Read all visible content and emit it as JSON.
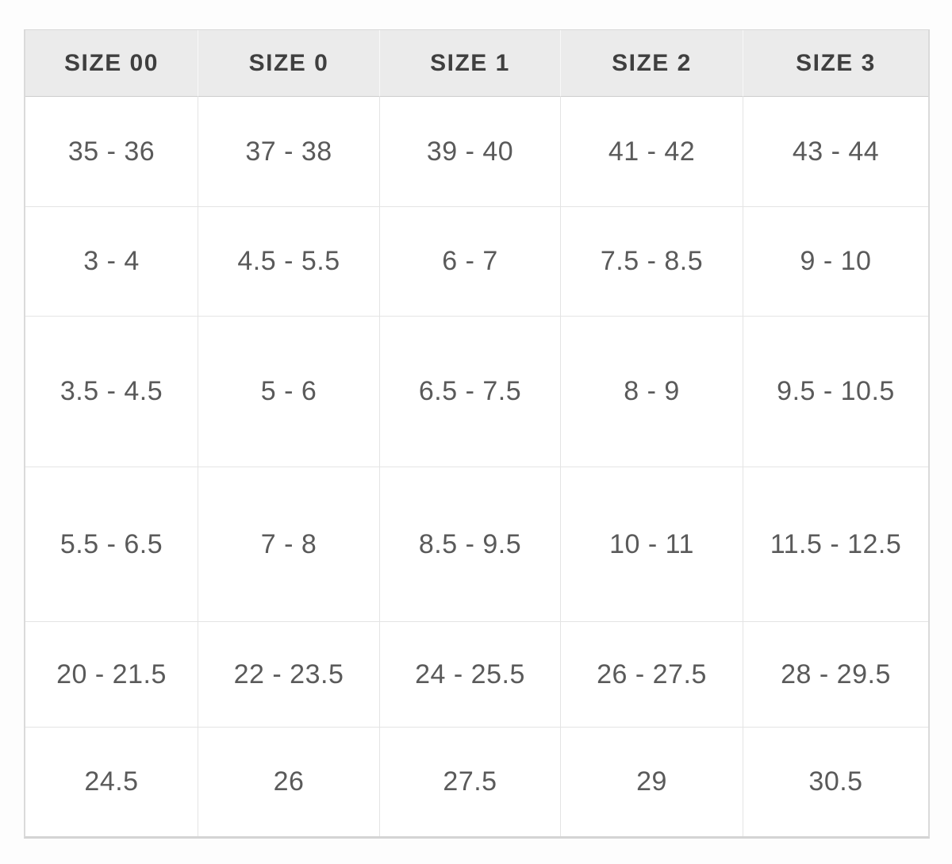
{
  "table": {
    "headers": [
      "SIZE 00",
      "SIZE 0",
      "SIZE 1",
      "SIZE 2",
      "SIZE 3"
    ],
    "rows": [
      [
        "35 - 36",
        "37 - 38",
        "39 - 40",
        "41 - 42",
        "43 - 44"
      ],
      [
        "3 - 4",
        "4.5 - 5.5",
        "6 - 7",
        "7.5 - 8.5",
        "9 - 10"
      ],
      [
        "3.5 - 4.5",
        "5 - 6",
        "6.5 - 7.5",
        "8 - 9",
        "9.5 - 10.5"
      ],
      [
        "5.5 - 6.5",
        "7 - 8",
        "8.5 - 9.5",
        "10 - 11",
        "11.5 - 12.5"
      ],
      [
        "20 - 21.5",
        "22 - 23.5",
        "24 - 25.5",
        "26 - 27.5",
        "28 - 29.5"
      ],
      [
        "24.5",
        "26",
        "27.5",
        "29",
        "30.5"
      ]
    ]
  },
  "chart_data": {
    "type": "table",
    "title": "",
    "columns": [
      "SIZE 00",
      "SIZE 0",
      "SIZE 1",
      "SIZE 2",
      "SIZE 3"
    ],
    "rows": [
      [
        "35 - 36",
        "37 - 38",
        "39 - 40",
        "41 - 42",
        "43 - 44"
      ],
      [
        "3 - 4",
        "4.5 - 5.5",
        "6 - 7",
        "7.5 - 8.5",
        "9 - 10"
      ],
      [
        "3.5 - 4.5",
        "5 - 6",
        "6.5 - 7.5",
        "8 - 9",
        "9.5 - 10.5"
      ],
      [
        "5.5 - 6.5",
        "7 - 8",
        "8.5 - 9.5",
        "10 - 11",
        "11.5 - 12.5"
      ],
      [
        "20 - 21.5",
        "22 - 23.5",
        "24 - 25.5",
        "26 - 27.5",
        "28 - 29.5"
      ],
      [
        "24.5",
        "26",
        "27.5",
        "29",
        "30.5"
      ]
    ],
    "layout_hints": {
      "header_row": true,
      "grid": true,
      "cell_alignment": "center"
    }
  },
  "colors": {
    "page_background": "#fdfdfd",
    "header_background": "#ebebeb",
    "header_text": "#3f3f3f",
    "cell_text": "#5a5a5a",
    "cell_background": "#ffffff",
    "outer_border": "#d8d8d8",
    "inner_border": "#e4e4e4"
  }
}
